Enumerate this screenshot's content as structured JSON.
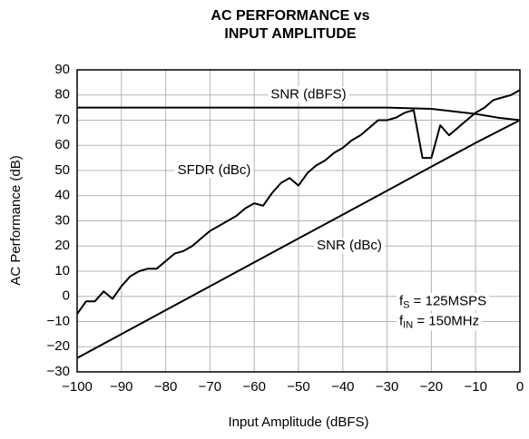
{
  "chart_data": {
    "type": "line",
    "title": [
      "AC PERFORMANCE vs",
      "INPUT AMPLITUDE"
    ],
    "xlabel": "Input Amplitude (dBFS)",
    "ylabel": "AC Performance (dB)",
    "xlim": [
      -100,
      0
    ],
    "ylim": [
      -30,
      90
    ],
    "xticks": [
      {
        "value": -100,
        "label": "−100"
      },
      {
        "value": -90,
        "label": "−90"
      },
      {
        "value": -80,
        "label": "−80"
      },
      {
        "value": -70,
        "label": "−70"
      },
      {
        "value": -60,
        "label": "−60"
      },
      {
        "value": -50,
        "label": "−50"
      },
      {
        "value": -40,
        "label": "−40"
      },
      {
        "value": -30,
        "label": "−30"
      },
      {
        "value": -20,
        "label": "−20"
      },
      {
        "value": -10,
        "label": "−10"
      },
      0
    ],
    "yticks": [
      {
        "value": -30,
        "label": "−30"
      },
      {
        "value": -20,
        "label": "−20"
      },
      {
        "value": -10,
        "label": "−10"
      },
      0,
      10,
      20,
      30,
      40,
      50,
      60,
      70,
      80,
      90
    ],
    "grid": true,
    "grid_color": "#b5b5b5",
    "series": [
      {
        "name": "SNR (dBFS)",
        "color": "#000000",
        "x": [
          -100,
          -90,
          -80,
          -70,
          -60,
          -50,
          -40,
          -30,
          -20,
          -10,
          -5,
          0
        ],
        "values": [
          75,
          75,
          75,
          75,
          75,
          75,
          75,
          75,
          74.5,
          72.5,
          71,
          70
        ]
      },
      {
        "name": "SFDR (dBc)",
        "color": "#000000",
        "x": [
          -100,
          -98,
          -96,
          -94,
          -92,
          -90,
          -88,
          -86,
          -84,
          -82,
          -80,
          -78,
          -76,
          -74,
          -72,
          -70,
          -68,
          -66,
          -64,
          -62,
          -60,
          -58,
          -56,
          -54,
          -52,
          -50,
          -48,
          -46,
          -44,
          -42,
          -40,
          -38,
          -36,
          -34,
          -32,
          -30,
          -28,
          -26,
          -24,
          -22,
          -20,
          -18,
          -16,
          -14,
          -12,
          -10,
          -8,
          -6,
          -4,
          -2,
          0
        ],
        "values": [
          -7,
          -2,
          -2,
          2,
          -1,
          4,
          8,
          10,
          11,
          11,
          14,
          17,
          18,
          20,
          23,
          26,
          28,
          30,
          32,
          35,
          37,
          36,
          41,
          45,
          47,
          44,
          49,
          52,
          54,
          57,
          59,
          62,
          64,
          67,
          70,
          70,
          71,
          73,
          74,
          55,
          55,
          68,
          64,
          67,
          70,
          73,
          75,
          78,
          79,
          80,
          82
        ]
      },
      {
        "name": "SNR (dBc)",
        "color": "#000000",
        "x": [
          -100,
          -90,
          -80,
          -70,
          -60,
          -50,
          -40,
          -30,
          -20,
          -10,
          0
        ],
        "values": [
          -24.5,
          -15,
          -5.5,
          4,
          13.5,
          23,
          32.5,
          42,
          51.5,
          61,
          70
        ]
      }
    ],
    "annotations": [
      [
        "f",
        "S",
        " = 125MSPS"
      ],
      [
        "f",
        "IN",
        " = 150MHz"
      ]
    ]
  }
}
